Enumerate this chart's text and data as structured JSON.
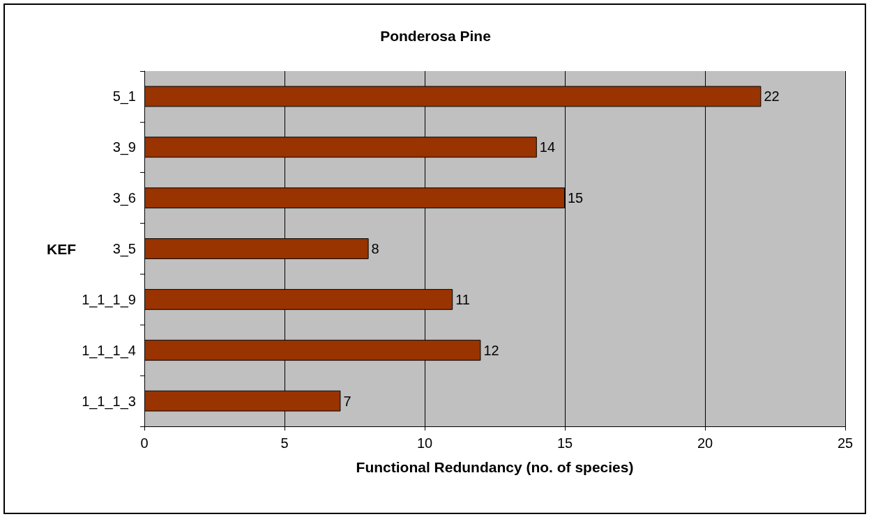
{
  "chart_data": {
    "type": "bar",
    "orientation": "horizontal",
    "title": "Ponderosa Pine",
    "xlabel": "Functional Redundancy (no. of species)",
    "ylabel": "KEF",
    "categories": [
      "5_1",
      "3_9",
      "3_6",
      "3_5",
      "1_1_1_9",
      "1_1_1_4",
      "1_1_1_3"
    ],
    "values": [
      22,
      14,
      15,
      8,
      11,
      12,
      7
    ],
    "color": "#993300",
    "xlim": [
      0,
      25
    ],
    "xticks": [
      0,
      5,
      10,
      15,
      20,
      25
    ],
    "grid": "x",
    "data_labels": true
  }
}
